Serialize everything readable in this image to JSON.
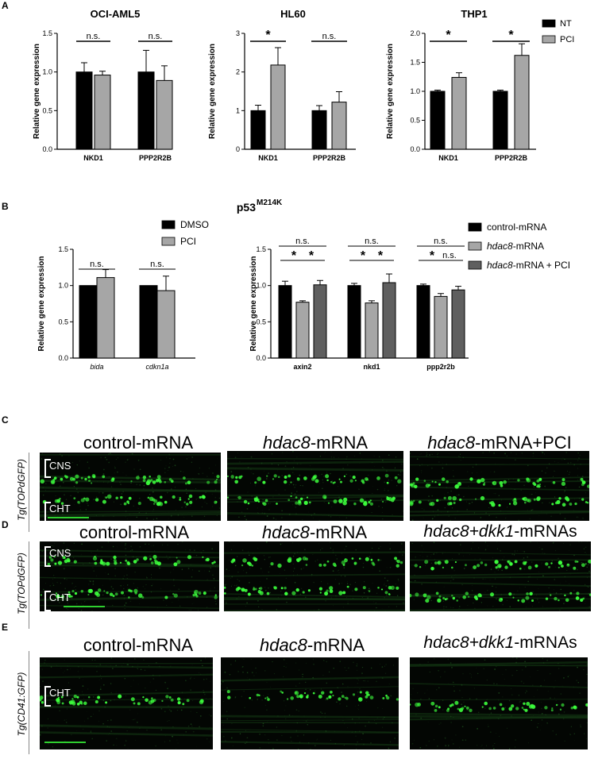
{
  "panels": {
    "A": "A",
    "B": "B",
    "C": "C",
    "D": "D",
    "E": "E"
  },
  "panelA": {
    "legend": [
      {
        "label": "NT",
        "color": "#000000"
      },
      {
        "label": "PCI",
        "color": "#a6a6a6"
      }
    ],
    "charts": [
      {
        "title": "OCI-AML5",
        "ylabel": "Relative gene expression",
        "ylim": [
          0,
          1.5
        ],
        "yticks": [
          "0.0",
          "0.5",
          "1.0",
          "1.5"
        ],
        "categories": [
          "NKD1",
          "PPP2R2B"
        ],
        "values": [
          [
            1.0,
            0.96
          ],
          [
            1.0,
            0.89
          ]
        ],
        "errors": [
          [
            0.12,
            0.05
          ],
          [
            0.28,
            0.19
          ]
        ],
        "sig": [
          "n.s.",
          "n.s."
        ]
      },
      {
        "title": "HL60",
        "ylabel": "Relative gene expression",
        "ylim": [
          0,
          3
        ],
        "yticks": [
          "0",
          "1",
          "2",
          "3"
        ],
        "categories": [
          "NKD1",
          "PPP2R2B"
        ],
        "values": [
          [
            1.0,
            2.18
          ],
          [
            1.0,
            1.22
          ]
        ],
        "errors": [
          [
            0.14,
            0.45
          ],
          [
            0.13,
            0.27
          ]
        ],
        "sig": [
          "*",
          "n.s."
        ]
      },
      {
        "title": "THP1",
        "ylabel": "Relative gene expression",
        "ylim": [
          0,
          2.0
        ],
        "yticks": [
          "0.0",
          "0.5",
          "1.0",
          "1.5",
          "2.0"
        ],
        "categories": [
          "NKD1",
          "PPP2R2B"
        ],
        "values": [
          [
            1.0,
            1.24
          ],
          [
            1.0,
            1.62
          ]
        ],
        "errors": [
          [
            0.02,
            0.08
          ],
          [
            0.02,
            0.2
          ]
        ],
        "sig": [
          "*",
          "*"
        ]
      }
    ]
  },
  "panelB": {
    "title_main": "p53",
    "title_sup": "M214K",
    "legend1": [
      {
        "label": "DMSO",
        "color": "#000000"
      },
      {
        "label": "PCI",
        "color": "#a6a6a6"
      }
    ],
    "legend2": [
      {
        "label": "control-mRNA",
        "color": "#000000",
        "it": "",
        "rest": "control-mRNA"
      },
      {
        "label": "hdac8-mRNA",
        "color": "#a6a6a6",
        "it": "hdac8",
        "rest": "-mRNA"
      },
      {
        "label": "hdac8-mRNA + PCI",
        "color": "#5f5f5f",
        "it": "hdac8",
        "rest": "-mRNA + PCI"
      }
    ],
    "chart1": {
      "ylabel": "Relative gene expression",
      "ylim": [
        0,
        1.5
      ],
      "yticks": [
        "0.0",
        "0.5",
        "1.0",
        "1.5"
      ],
      "categories": [
        "bida",
        "cdkn1a"
      ],
      "values": [
        [
          1.0,
          1.11
        ],
        [
          1.0,
          0.93
        ]
      ],
      "errors": [
        [
          0,
          0.11
        ],
        [
          0,
          0.2
        ]
      ],
      "sig": [
        "n.s.",
        "n.s."
      ]
    },
    "chart2": {
      "ylabel": "Relative gene expression",
      "ylim": [
        0,
        1.5
      ],
      "yticks": [
        "0.0",
        "0.5",
        "1.0",
        "1.5"
      ],
      "categories": [
        "axin2",
        "nkd1",
        "ppp2r2b"
      ],
      "values": [
        [
          1.0,
          0.77,
          1.01
        ],
        [
          1.0,
          0.76,
          1.04
        ],
        [
          1.0,
          0.85,
          0.94
        ]
      ],
      "errors": [
        [
          0.06,
          0.02,
          0.06
        ],
        [
          0.03,
          0.03,
          0.12
        ],
        [
          0.02,
          0.04,
          0.05
        ]
      ],
      "sig_top": [
        "n.s.",
        "n.s.",
        "n.s."
      ],
      "sig_left": [
        "*",
        "*",
        "*"
      ],
      "sig_right": [
        "*",
        "*",
        "n.s."
      ]
    }
  },
  "panelC": {
    "rowlabel": "Tg(TOPdGFP)",
    "titles": [
      {
        "it": "",
        "rest": "control-mRNA"
      },
      {
        "it": "hdac8",
        "rest": "-mRNA"
      },
      {
        "it": "hdac8",
        "rest": "-mRNA+PCI"
      }
    ],
    "cns": "CNS",
    "cht": "CHT"
  },
  "panelD": {
    "rowlabel": "Tg(TOPdGFP)",
    "titles": [
      {
        "it": "",
        "rest": "control-mRNA"
      },
      {
        "it": "hdac8",
        "rest": "-mRNA"
      },
      {
        "it": "hdac8+dkk1",
        "rest": "-mRNAs"
      }
    ],
    "cns": "CNS",
    "cht": "CHT"
  },
  "panelE": {
    "rowlabel": "Tg(CD41:GFP)",
    "titles": [
      {
        "it": "",
        "rest": "control-mRNA"
      },
      {
        "it": "hdac8",
        "rest": "-mRNA"
      },
      {
        "it": "hdac8+dkk1",
        "rest": "-mRNAs"
      }
    ],
    "cht": "CHT"
  },
  "chart_data": [
    {
      "type": "bar",
      "title": "OCI-AML5",
      "categories": [
        "NKD1",
        "PPP2R2B"
      ],
      "ylabel": "Relative gene expression",
      "ylim": [
        0,
        1.5
      ],
      "series": [
        {
          "name": "NT",
          "values": [
            1.0,
            1.0
          ]
        },
        {
          "name": "PCI",
          "values": [
            0.96,
            0.89
          ]
        }
      ]
    },
    {
      "type": "bar",
      "title": "HL60",
      "categories": [
        "NKD1",
        "PPP2R2B"
      ],
      "ylabel": "Relative gene expression",
      "ylim": [
        0,
        3
      ],
      "series": [
        {
          "name": "NT",
          "values": [
            1.0,
            1.0
          ]
        },
        {
          "name": "PCI",
          "values": [
            2.18,
            1.22
          ]
        }
      ]
    },
    {
      "type": "bar",
      "title": "THP1",
      "categories": [
        "NKD1",
        "PPP2R2B"
      ],
      "ylabel": "Relative gene expression",
      "ylim": [
        0,
        2.0
      ],
      "series": [
        {
          "name": "NT",
          "values": [
            1.0,
            1.0
          ]
        },
        {
          "name": "PCI",
          "values": [
            1.24,
            1.62
          ]
        }
      ]
    },
    {
      "type": "bar",
      "categories": [
        "bida",
        "cdkn1a"
      ],
      "ylabel": "Relative gene expression",
      "ylim": [
        0,
        1.5
      ],
      "series": [
        {
          "name": "DMSO",
          "values": [
            1.0,
            1.0
          ]
        },
        {
          "name": "PCI",
          "values": [
            1.11,
            0.93
          ]
        }
      ]
    },
    {
      "type": "bar",
      "categories": [
        "axin2",
        "nkd1",
        "ppp2r2b"
      ],
      "ylabel": "Relative gene expression",
      "ylim": [
        0,
        1.5
      ],
      "series": [
        {
          "name": "control-mRNA",
          "values": [
            1.0,
            1.0,
            1.0
          ]
        },
        {
          "name": "hdac8-mRNA",
          "values": [
            0.77,
            0.76,
            0.85
          ]
        },
        {
          "name": "hdac8-mRNA + PCI",
          "values": [
            1.01,
            1.04,
            0.94
          ]
        }
      ]
    }
  ]
}
